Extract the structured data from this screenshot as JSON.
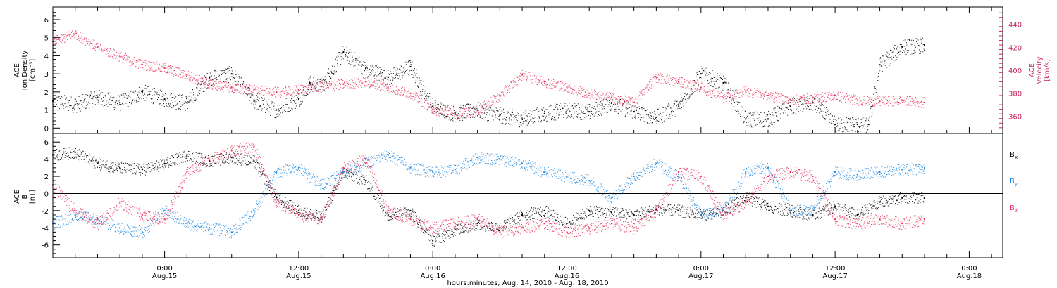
{
  "colors": {
    "black": "#000000",
    "pink": "#e8325f",
    "blue": "#1e88e5",
    "axis": "#000000",
    "right_axis": "#c8245a"
  },
  "x_axis": {
    "start": "2010-08-14 14:00",
    "end": "2010-08-18 03:00",
    "ticks": [
      {
        "time": "2010-08-15 00:00",
        "label1": "0:00",
        "label2": "Aug.15"
      },
      {
        "time": "2010-08-15 12:00",
        "label1": "12:00",
        "label2": "Aug.15"
      },
      {
        "time": "2010-08-16 00:00",
        "label1": "0:00",
        "label2": "Aug.16"
      },
      {
        "time": "2010-08-16 12:00",
        "label1": "12:00",
        "label2": "Aug.16"
      },
      {
        "time": "2010-08-17 00:00",
        "label1": "0:00",
        "label2": "Aug.17"
      },
      {
        "time": "2010-08-17 12:00",
        "label1": "12:00",
        "label2": "Aug.17"
      },
      {
        "time": "2010-08-18 00:00",
        "label1": "0:00",
        "label2": "Aug.18"
      }
    ],
    "xlabel": "hours:minutes, Aug. 14, 2010 - Aug. 18, 2010"
  },
  "chart_data": [
    {
      "type": "scatter",
      "ylabel_lines": [
        "ACE",
        "Ion Density",
        "[cm⁻³]"
      ],
      "ylim": [
        -0.3,
        6.7
      ],
      "yticks": [
        0,
        1,
        2,
        3,
        4,
        5,
        6
      ],
      "y2label_lines": [
        "ACE",
        "Velocity",
        "[km/s]"
      ],
      "y2lim": [
        345,
        455
      ],
      "y2ticks": [
        360,
        380,
        400,
        420,
        440
      ],
      "series": [
        {
          "color": "black",
          "axis": "left",
          "x": [
            "2010-08-14 14:00",
            "2010-08-14 16:00",
            "2010-08-14 18:00",
            "2010-08-14 20:00",
            "2010-08-14 22:00",
            "2010-08-15 00:00",
            "2010-08-15 02:00",
            "2010-08-15 04:00",
            "2010-08-15 06:00",
            "2010-08-15 08:00",
            "2010-08-15 10:00",
            "2010-08-15 12:00",
            "2010-08-15 13:00",
            "2010-08-15 14:00",
            "2010-08-15 16:00",
            "2010-08-15 18:00",
            "2010-08-15 20:00",
            "2010-08-15 22:00",
            "2010-08-16 00:00",
            "2010-08-16 02:00",
            "2010-08-16 04:00",
            "2010-08-16 06:00",
            "2010-08-16 08:00",
            "2010-08-16 10:00",
            "2010-08-16 12:00",
            "2010-08-16 14:00",
            "2010-08-16 16:00",
            "2010-08-16 18:00",
            "2010-08-16 20:00",
            "2010-08-16 22:00",
            "2010-08-17 00:00",
            "2010-08-17 02:00",
            "2010-08-17 04:00",
            "2010-08-17 06:00",
            "2010-08-17 08:00",
            "2010-08-17 10:00",
            "2010-08-17 12:00",
            "2010-08-17 14:00",
            "2010-08-17 15:00",
            "2010-08-17 16:00",
            "2010-08-17 18:00",
            "2010-08-17 20:00"
          ],
          "y": [
            1.5,
            1.3,
            1.7,
            1.4,
            2.0,
            1.6,
            1.4,
            2.8,
            3.0,
            1.5,
            1.0,
            1.6,
            2.5,
            2.3,
            4.2,
            3.3,
            2.8,
            3.4,
            1.2,
            0.8,
            1.0,
            0.7,
            0.5,
            0.8,
            1.0,
            0.9,
            1.4,
            0.9,
            0.6,
            1.2,
            3.0,
            2.5,
            0.5,
            0.5,
            1.2,
            1.4,
            0.2,
            0.2,
            0.2,
            3.5,
            4.5,
            4.6
          ]
        },
        {
          "color": "pink",
          "axis": "right",
          "x": [
            "2010-08-14 14:00",
            "2010-08-14 16:00",
            "2010-08-14 18:00",
            "2010-08-14 20:00",
            "2010-08-14 22:00",
            "2010-08-15 00:00",
            "2010-08-15 02:00",
            "2010-08-15 04:00",
            "2010-08-15 06:00",
            "2010-08-15 08:00",
            "2010-08-15 10:00",
            "2010-08-15 12:00",
            "2010-08-15 14:00",
            "2010-08-15 16:00",
            "2010-08-15 18:00",
            "2010-08-15 20:00",
            "2010-08-15 22:00",
            "2010-08-16 00:00",
            "2010-08-16 02:00",
            "2010-08-16 04:00",
            "2010-08-16 06:00",
            "2010-08-16 08:00",
            "2010-08-16 10:00",
            "2010-08-16 12:00",
            "2010-08-16 14:00",
            "2010-08-16 16:00",
            "2010-08-16 18:00",
            "2010-08-16 20:00",
            "2010-08-16 22:00",
            "2010-08-17 00:00",
            "2010-08-17 02:00",
            "2010-08-17 04:00",
            "2010-08-17 06:00",
            "2010-08-17 08:00",
            "2010-08-17 10:00",
            "2010-08-17 12:00",
            "2010-08-17 14:00",
            "2010-08-17 16:00",
            "2010-08-17 18:00",
            "2010-08-17 20:00"
          ],
          "y": [
            425,
            432,
            420,
            412,
            405,
            402,
            396,
            388,
            385,
            383,
            381,
            383,
            386,
            388,
            390,
            385,
            380,
            366,
            362,
            365,
            378,
            396,
            390,
            385,
            380,
            376,
            372,
            394,
            390,
            385,
            376,
            382,
            378,
            374,
            376,
            378,
            374,
            373,
            374,
            372
          ]
        }
      ]
    },
    {
      "type": "scatter",
      "ylabel_lines": [
        "ACE",
        "B",
        "[nT]"
      ],
      "ylim": [
        -7.5,
        7
      ],
      "yticks": [
        -6,
        -4,
        -2,
        0,
        2,
        4,
        6
      ],
      "zero_line": true,
      "legend": [
        {
          "label": "B",
          "sub": "x",
          "color": "black"
        },
        {
          "label": "B",
          "sub": "y",
          "color": "blue"
        },
        {
          "label": "B",
          "sub": "z",
          "color": "pink"
        }
      ],
      "series": [
        {
          "name": "Bx",
          "color": "black",
          "x": [
            "2010-08-14 14:00",
            "2010-08-14 16:00",
            "2010-08-14 18:00",
            "2010-08-14 20:00",
            "2010-08-14 22:00",
            "2010-08-15 00:00",
            "2010-08-15 02:00",
            "2010-08-15 04:00",
            "2010-08-15 06:00",
            "2010-08-15 08:00",
            "2010-08-15 10:00",
            "2010-08-15 12:00",
            "2010-08-15 14:00",
            "2010-08-15 16:00",
            "2010-08-15 18:00",
            "2010-08-15 20:00",
            "2010-08-15 22:00",
            "2010-08-16 00:00",
            "2010-08-16 02:00",
            "2010-08-16 04:00",
            "2010-08-16 06:00",
            "2010-08-16 08:00",
            "2010-08-16 10:00",
            "2010-08-16 12:00",
            "2010-08-16 14:00",
            "2010-08-16 16:00",
            "2010-08-16 18:00",
            "2010-08-16 20:00",
            "2010-08-16 22:00",
            "2010-08-17 00:00",
            "2010-08-17 02:00",
            "2010-08-17 04:00",
            "2010-08-17 06:00",
            "2010-08-17 08:00",
            "2010-08-17 10:00",
            "2010-08-17 12:00",
            "2010-08-17 14:00",
            "2010-08-17 16:00",
            "2010-08-17 18:00",
            "2010-08-17 20:00"
          ],
          "y": [
            4.5,
            4.8,
            3.5,
            3.0,
            2.8,
            3.5,
            4.5,
            3.8,
            4.2,
            3.8,
            -0.5,
            -2.0,
            -2.8,
            2.5,
            1.5,
            -2.5,
            -2.0,
            -5.5,
            -4.2,
            -3.5,
            -4.0,
            -2.5,
            -2.0,
            -3.5,
            -2.0,
            -2.2,
            -2.5,
            -1.8,
            -2.0,
            -2.5,
            -2.0,
            -0.5,
            -1.5,
            -2.0,
            -2.5,
            -1.5,
            -2.5,
            -1.0,
            -0.5,
            -0.5
          ]
        },
        {
          "name": "By",
          "color": "blue",
          "x": [
            "2010-08-14 14:00",
            "2010-08-14 16:00",
            "2010-08-14 18:00",
            "2010-08-14 20:00",
            "2010-08-14 22:00",
            "2010-08-15 00:00",
            "2010-08-15 02:00",
            "2010-08-15 04:00",
            "2010-08-15 06:00",
            "2010-08-15 08:00",
            "2010-08-15 10:00",
            "2010-08-15 12:00",
            "2010-08-15 14:00",
            "2010-08-15 16:00",
            "2010-08-15 18:00",
            "2010-08-15 20:00",
            "2010-08-15 22:00",
            "2010-08-16 00:00",
            "2010-08-16 02:00",
            "2010-08-16 04:00",
            "2010-08-16 06:00",
            "2010-08-16 08:00",
            "2010-08-16 10:00",
            "2010-08-16 12:00",
            "2010-08-16 14:00",
            "2010-08-16 16:00",
            "2010-08-16 18:00",
            "2010-08-16 20:00",
            "2010-08-16 22:00",
            "2010-08-17 00:00",
            "2010-08-17 02:00",
            "2010-08-17 04:00",
            "2010-08-17 06:00",
            "2010-08-17 08:00",
            "2010-08-17 10:00",
            "2010-08-17 12:00",
            "2010-08-17 14:00",
            "2010-08-17 16:00",
            "2010-08-17 18:00",
            "2010-08-17 20:00"
          ],
          "y": [
            -3.5,
            -2.5,
            -3.0,
            -4.0,
            -4.5,
            -2.0,
            -3.5,
            -4.0,
            -4.5,
            -2.0,
            2.5,
            3.0,
            1.0,
            2.5,
            3.5,
            4.5,
            3.0,
            2.5,
            2.8,
            4.2,
            4.0,
            3.5,
            2.5,
            2.0,
            1.5,
            -0.5,
            2.0,
            3.5,
            2.0,
            -2.5,
            -2.0,
            2.5,
            3.0,
            -2.0,
            -1.8,
            2.5,
            2.2,
            2.5,
            2.8,
            3.0
          ]
        },
        {
          "name": "Bz",
          "color": "pink",
          "x": [
            "2010-08-14 14:00",
            "2010-08-14 16:00",
            "2010-08-14 18:00",
            "2010-08-14 20:00",
            "2010-08-14 22:00",
            "2010-08-15 00:00",
            "2010-08-15 02:00",
            "2010-08-15 04:00",
            "2010-08-15 06:00",
            "2010-08-15 08:00",
            "2010-08-15 10:00",
            "2010-08-15 12:00",
            "2010-08-15 14:00",
            "2010-08-15 16:00",
            "2010-08-15 18:00",
            "2010-08-15 20:00",
            "2010-08-15 22:00",
            "2010-08-16 00:00",
            "2010-08-16 02:00",
            "2010-08-16 04:00",
            "2010-08-16 06:00",
            "2010-08-16 08:00",
            "2010-08-16 10:00",
            "2010-08-16 12:00",
            "2010-08-16 14:00",
            "2010-08-16 16:00",
            "2010-08-16 18:00",
            "2010-08-16 20:00",
            "2010-08-16 22:00",
            "2010-08-17 00:00",
            "2010-08-17 02:00",
            "2010-08-17 04:00",
            "2010-08-17 06:00",
            "2010-08-17 08:00",
            "2010-08-17 10:00",
            "2010-08-17 12:00",
            "2010-08-17 14:00",
            "2010-08-17 16:00",
            "2010-08-17 18:00",
            "2010-08-17 20:00"
          ],
          "y": [
            1.0,
            -2.0,
            -3.5,
            -1.0,
            -2.5,
            -3.0,
            2.5,
            4.0,
            5.0,
            5.5,
            -1.0,
            -2.5,
            -3.0,
            3.0,
            4.0,
            -2.0,
            -3.0,
            -4.0,
            -3.5,
            -3.0,
            -4.5,
            -4.0,
            -3.5,
            -4.5,
            -4.0,
            -3.5,
            -4.0,
            -2.0,
            2.5,
            2.0,
            -2.5,
            -1.0,
            2.0,
            2.5,
            2.0,
            -3.0,
            -3.5,
            -3.0,
            -3.5,
            -3.0
          ]
        }
      ]
    }
  ]
}
